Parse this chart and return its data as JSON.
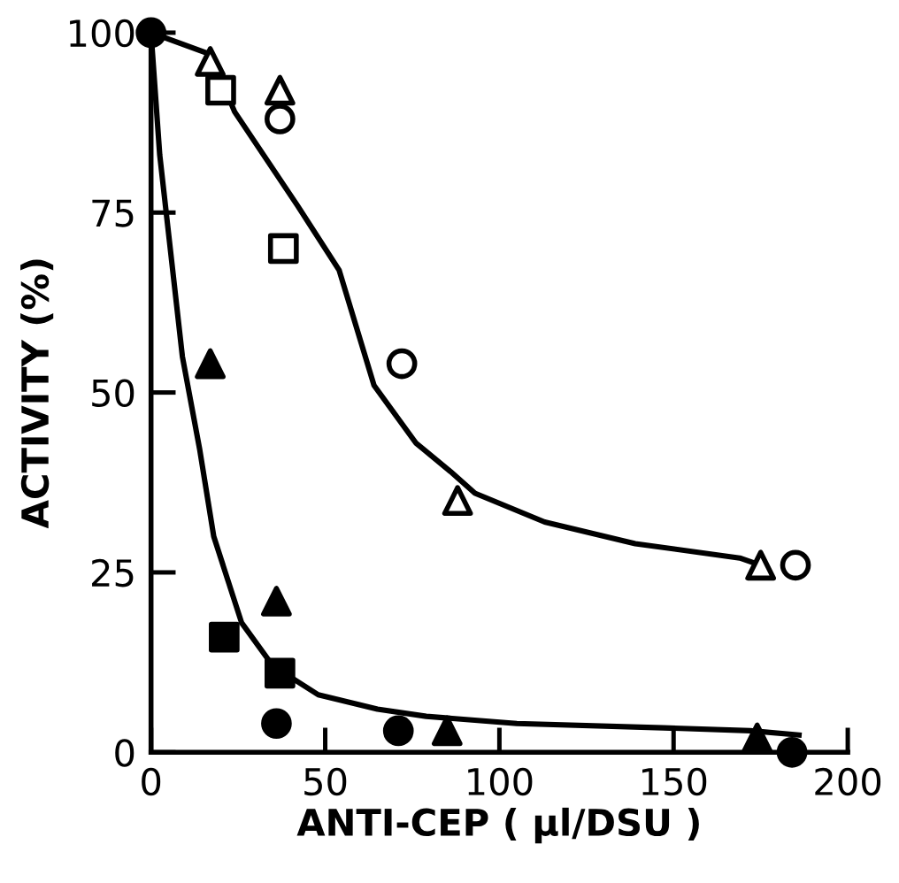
{
  "chart_data": {
    "type": "scatter",
    "xlabel": "ANTI-CEP ( µl/DSU )",
    "ylabel": "ACTIVITY (%)",
    "xlim": [
      0,
      200
    ],
    "ylim": [
      0,
      100
    ],
    "xticks": [
      0,
      50,
      100,
      150,
      200
    ],
    "yticks": [
      0,
      25,
      50,
      75,
      100
    ],
    "grid": false,
    "legend": false,
    "series": [
      {
        "type": "line",
        "color": "#000000",
        "x": [
          0,
          17,
          24,
          42,
          54,
          64,
          76,
          86,
          93,
          113,
          139,
          169,
          175
        ],
        "values": [
          100,
          97,
          89,
          76,
          67,
          51,
          43,
          39,
          36,
          32,
          29,
          27,
          26
        ],
        "marker": "none",
        "line_style": "solid"
      },
      {
        "type": "line",
        "color": "#000000",
        "x": [
          0,
          2.5,
          9,
          14,
          18,
          26,
          35,
          48,
          65,
          79,
          105,
          147,
          172,
          186
        ],
        "values": [
          100,
          83,
          55,
          42,
          30,
          18,
          12,
          8,
          6,
          5,
          4,
          3.4,
          3,
          2.4
        ],
        "marker": "none",
        "line_style": "solid"
      },
      {
        "color": "#000000",
        "marker": "circle",
        "x": [
          0,
          36,
          71,
          184
        ],
        "values": [
          100,
          4,
          3,
          0
        ]
      },
      {
        "color": "#000000",
        "marker": "square",
        "x": [
          21,
          37
        ],
        "values": [
          16,
          11
        ]
      },
      {
        "color": "#000000",
        "marker": "triangle",
        "x": [
          17,
          36,
          85,
          174
        ],
        "values": [
          54,
          21,
          3,
          2
        ]
      },
      {
        "color": "#ffffff",
        "marker": "triangle",
        "x": [
          17,
          37,
          88,
          175
        ],
        "values": [
          96,
          92,
          35,
          26
        ]
      },
      {
        "color": "#ffffff",
        "marker": "circle",
        "x": [
          37,
          72,
          185
        ],
        "values": [
          88,
          54,
          26
        ]
      },
      {
        "color": "#ffffff",
        "marker": "square",
        "x": [
          20,
          38
        ],
        "values": [
          92,
          70
        ]
      }
    ]
  }
}
